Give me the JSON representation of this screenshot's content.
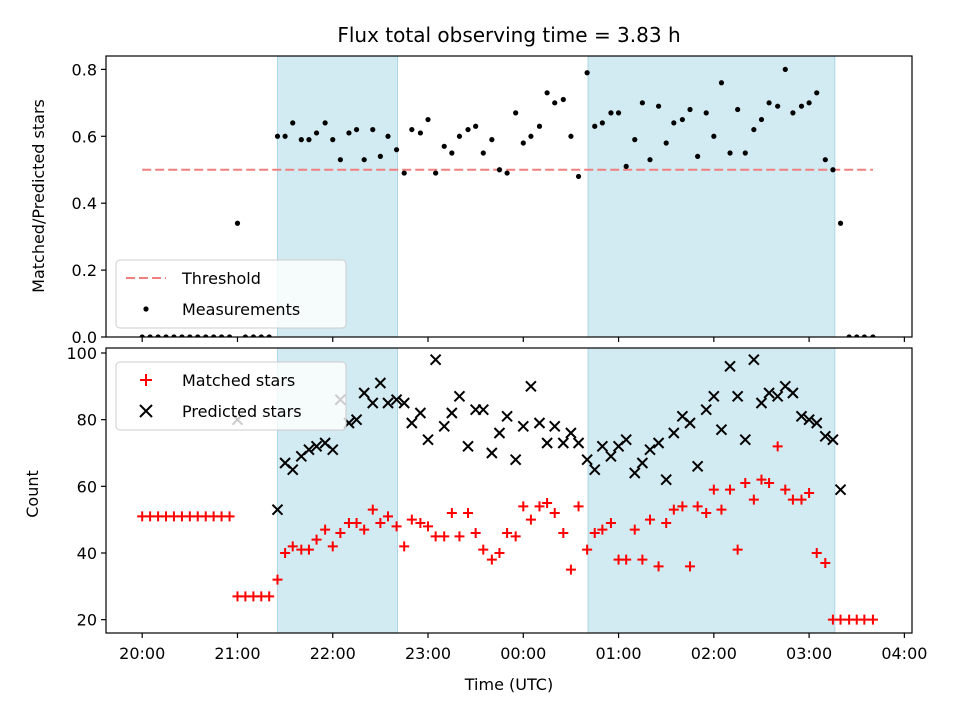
{
  "chart_data": [
    {
      "type": "scatter",
      "title": "Flux total observing time = 3.83 h",
      "xlabel": "",
      "ylabel": "Matched/Predicted stars",
      "xlim": [
        -0.38,
        8.08
      ],
      "ylim": [
        0,
        0.84
      ],
      "y_ticks": [
        0,
        0.2,
        0.4,
        0.6,
        0.8
      ],
      "y_tick_labels": [
        "0.0",
        "0.2",
        "0.4",
        "0.6",
        "0.8"
      ],
      "shaded_intervals": [
        [
          1.42,
          2.68
        ],
        [
          4.68,
          7.27
        ]
      ],
      "shade_color": "#add8e6",
      "legend": {
        "position": "lower-left",
        "entries": [
          "Threshold",
          "Measurements"
        ]
      },
      "threshold": {
        "name": "Threshold",
        "y": 0.5,
        "x": [
          0.0,
          7.67
        ],
        "color": "#f08080"
      },
      "series": [
        {
          "name": "Measurements",
          "color": "#000000",
          "x": [
            0.0,
            0.083,
            0.167,
            0.25,
            0.333,
            0.417,
            0.5,
            0.583,
            0.667,
            0.75,
            0.833,
            0.917,
            1.0,
            1.083,
            1.167,
            1.25,
            1.333,
            1.42,
            1.5,
            1.58,
            1.67,
            1.75,
            1.83,
            1.92,
            2.0,
            2.08,
            2.17,
            2.25,
            2.33,
            2.42,
            2.5,
            2.58,
            2.67,
            2.75,
            2.83,
            2.92,
            3.0,
            3.08,
            3.17,
            3.25,
            3.33,
            3.42,
            3.5,
            3.58,
            3.67,
            3.75,
            3.83,
            3.92,
            4.0,
            4.08,
            4.17,
            4.25,
            4.33,
            4.42,
            4.5,
            4.58,
            4.67,
            4.75,
            4.83,
            4.92,
            5.0,
            5.08,
            5.17,
            5.25,
            5.33,
            5.42,
            5.5,
            5.58,
            5.67,
            5.75,
            5.83,
            5.92,
            6.0,
            6.08,
            6.17,
            6.25,
            6.33,
            6.42,
            6.5,
            6.58,
            6.67,
            6.75,
            6.83,
            6.92,
            7.0,
            7.08,
            7.17,
            7.25,
            7.33,
            7.42,
            7.5,
            7.58,
            7.67
          ],
          "y": [
            0,
            0,
            0,
            0,
            0,
            0,
            0,
            0,
            0,
            0,
            0,
            0,
            0.34,
            0,
            0,
            0,
            0,
            0.6,
            0.6,
            0.64,
            0.59,
            0.59,
            0.61,
            0.64,
            0.59,
            0.53,
            0.61,
            0.62,
            0.53,
            0.62,
            0.54,
            0.6,
            0.56,
            0.49,
            0.62,
            0.61,
            0.65,
            0.49,
            0.57,
            0.55,
            0.6,
            0.62,
            0.63,
            0.55,
            0.59,
            0.5,
            0.49,
            0.67,
            0.58,
            0.6,
            0.63,
            0.73,
            0.7,
            0.71,
            0.6,
            0.48,
            0.79,
            0.63,
            0.64,
            0.67,
            0.67,
            0.51,
            0.59,
            0.7,
            0.53,
            0.69,
            0.58,
            0.64,
            0.65,
            0.68,
            0.54,
            0.67,
            0.6,
            0.76,
            0.55,
            0.68,
            0.55,
            0.62,
            0.65,
            0.7,
            0.69,
            0.8,
            0.67,
            0.69,
            0.7,
            0.73,
            0.53,
            0.5,
            0.34,
            0,
            0,
            0,
            0
          ]
        }
      ]
    },
    {
      "type": "scatter",
      "title": "",
      "xlabel": "Time (UTC)",
      "ylabel": "Count",
      "xlim": [
        -0.38,
        8.08
      ],
      "ylim": [
        16,
        101.5
      ],
      "y_ticks": [
        20,
        40,
        60,
        80,
        100
      ],
      "y_tick_labels": [
        "20",
        "40",
        "60",
        "80",
        "100"
      ],
      "x_ticks": [
        0,
        1,
        2,
        3,
        4,
        5,
        6,
        7,
        8
      ],
      "x_tick_labels": [
        "20:00",
        "21:00",
        "22:00",
        "23:00",
        "00:00",
        "01:00",
        "02:00",
        "03:00",
        "04:00"
      ],
      "shaded_intervals": [
        [
          1.42,
          2.68
        ],
        [
          4.68,
          7.27
        ]
      ],
      "shade_color": "#add8e6",
      "legend": {
        "position": "upper-left",
        "entries": [
          "Matched stars",
          "Predicted stars"
        ]
      },
      "series": [
        {
          "name": "Matched stars",
          "marker": "+",
          "color": "#ff0000",
          "x": [
            0.0,
            0.083,
            0.167,
            0.25,
            0.333,
            0.417,
            0.5,
            0.583,
            0.667,
            0.75,
            0.833,
            0.917,
            1.0,
            1.083,
            1.167,
            1.25,
            1.333,
            1.42,
            1.5,
            1.58,
            1.67,
            1.75,
            1.83,
            1.92,
            2.0,
            2.08,
            2.17,
            2.25,
            2.33,
            2.42,
            2.5,
            2.58,
            2.67,
            2.75,
            2.83,
            2.92,
            3.0,
            3.08,
            3.17,
            3.25,
            3.33,
            3.42,
            3.5,
            3.58,
            3.67,
            3.75,
            3.83,
            3.92,
            4.0,
            4.08,
            4.17,
            4.25,
            4.33,
            4.42,
            4.5,
            4.58,
            4.67,
            4.75,
            4.83,
            4.92,
            5.0,
            5.08,
            5.17,
            5.25,
            5.33,
            5.42,
            5.5,
            5.58,
            5.67,
            5.75,
            5.83,
            5.92,
            6.0,
            6.08,
            6.17,
            6.25,
            6.33,
            6.42,
            6.5,
            6.58,
            6.67,
            6.75,
            6.83,
            6.92,
            7.0,
            7.08,
            7.17,
            7.25,
            7.33,
            7.42,
            7.5,
            7.58,
            7.67
          ],
          "y": [
            51,
            51,
            51,
            51,
            51,
            51,
            51,
            51,
            51,
            51,
            51,
            51,
            27,
            27,
            27,
            27,
            27,
            32,
            40,
            42,
            41,
            41,
            44,
            47,
            42,
            46,
            49,
            49,
            47,
            53,
            49,
            51,
            48,
            42,
            50,
            49,
            48,
            45,
            45,
            52,
            45,
            52,
            46,
            41,
            38,
            40,
            46,
            45,
            54,
            50,
            54,
            55,
            52,
            46,
            35,
            54,
            41,
            46,
            47,
            49,
            38,
            38,
            47,
            38,
            50,
            36,
            49,
            53,
            54,
            36,
            54,
            52,
            59,
            53,
            59,
            41,
            61,
            56,
            62,
            61,
            72,
            59,
            56,
            56,
            58,
            40,
            37,
            20,
            20,
            20,
            20,
            20,
            20
          ]
        },
        {
          "name": "Predicted stars",
          "marker": "x",
          "color": "#000000",
          "x": [
            1.0,
            1.42,
            1.5,
            1.58,
            1.67,
            1.75,
            1.83,
            1.92,
            2.0,
            2.08,
            2.17,
            2.25,
            2.33,
            2.42,
            2.5,
            2.58,
            2.67,
            2.75,
            2.83,
            2.92,
            3.0,
            3.08,
            3.17,
            3.25,
            3.33,
            3.42,
            3.5,
            3.58,
            3.67,
            3.75,
            3.83,
            3.92,
            4.0,
            4.08,
            4.17,
            4.25,
            4.33,
            4.42,
            4.5,
            4.58,
            4.67,
            4.75,
            4.83,
            4.92,
            5.0,
            5.08,
            5.17,
            5.25,
            5.33,
            5.42,
            5.5,
            5.58,
            5.67,
            5.75,
            5.83,
            5.92,
            6.0,
            6.08,
            6.17,
            6.25,
            6.33,
            6.42,
            6.5,
            6.58,
            6.67,
            6.75,
            6.83,
            6.92,
            7.0,
            7.08,
            7.17,
            7.25,
            7.33
          ],
          "y": [
            80,
            53,
            67,
            65,
            69,
            71,
            72,
            73,
            71,
            86,
            79,
            80,
            88,
            85,
            91,
            85,
            86,
            85,
            79,
            82,
            74,
            98,
            78,
            82,
            87,
            72,
            83,
            83,
            70,
            76,
            81,
            68,
            78,
            90,
            79,
            73,
            78,
            73,
            76,
            73,
            68,
            65,
            72,
            69,
            72,
            74,
            64,
            67,
            71,
            73,
            62,
            76,
            81,
            79,
            66,
            83,
            87,
            77,
            96,
            87,
            74,
            98,
            85,
            88,
            87,
            90,
            88,
            81,
            80,
            79,
            75,
            74,
            59
          ]
        }
      ]
    }
  ]
}
